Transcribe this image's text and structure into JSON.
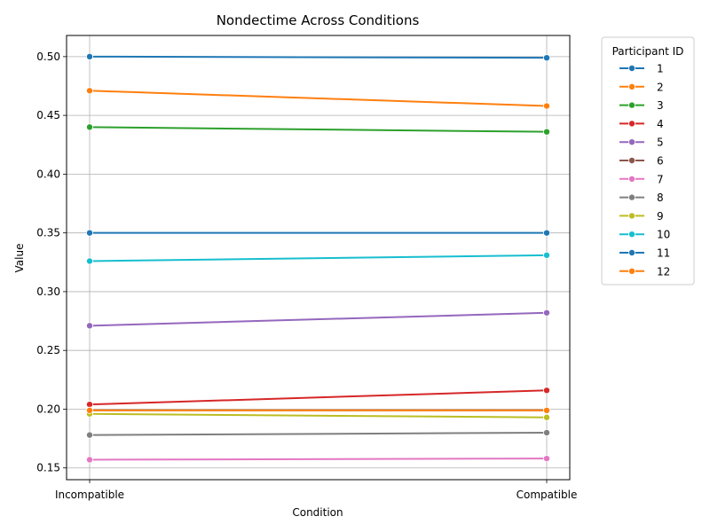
{
  "chart_data": {
    "type": "line",
    "title": "Nondectime Across Conditions",
    "xlabel": "Condition",
    "ylabel": "Value",
    "categories": [
      "Incompatible",
      "Compatible"
    ],
    "ylim": [
      0.14,
      0.518
    ],
    "yticks": [
      "0.15",
      "0.20",
      "0.25",
      "0.30",
      "0.35",
      "0.40",
      "0.45",
      "0.50"
    ],
    "grid": true,
    "legend": {
      "title": "Participant ID",
      "placement": "outside-right"
    },
    "series": [
      {
        "name": "1",
        "color": "#1f77b4",
        "values": [
          0.5,
          0.499
        ]
      },
      {
        "name": "2",
        "color": "#ff7f0e",
        "values": [
          0.471,
          0.458
        ]
      },
      {
        "name": "3",
        "color": "#2ca02c",
        "values": [
          0.44,
          0.436
        ]
      },
      {
        "name": "4",
        "color": "#d62728",
        "values": [
          0.204,
          0.216
        ]
      },
      {
        "name": "5",
        "color": "#9467bd",
        "values": [
          0.271,
          0.282
        ]
      },
      {
        "name": "6",
        "color": "#8c564b",
        "values": [
          0.199,
          0.199
        ]
      },
      {
        "name": "7",
        "color": "#e377c2",
        "values": [
          0.157,
          0.158
        ]
      },
      {
        "name": "8",
        "color": "#7f7f7f",
        "values": [
          0.178,
          0.18
        ]
      },
      {
        "name": "9",
        "color": "#bcbd22",
        "values": [
          0.196,
          0.193
        ]
      },
      {
        "name": "10",
        "color": "#17becf",
        "values": [
          0.326,
          0.331
        ]
      },
      {
        "name": "11",
        "color": "#1f77b4",
        "values": [
          0.35,
          0.35
        ]
      },
      {
        "name": "12",
        "color": "#ff7f0e",
        "values": [
          0.199,
          0.199
        ]
      }
    ]
  }
}
